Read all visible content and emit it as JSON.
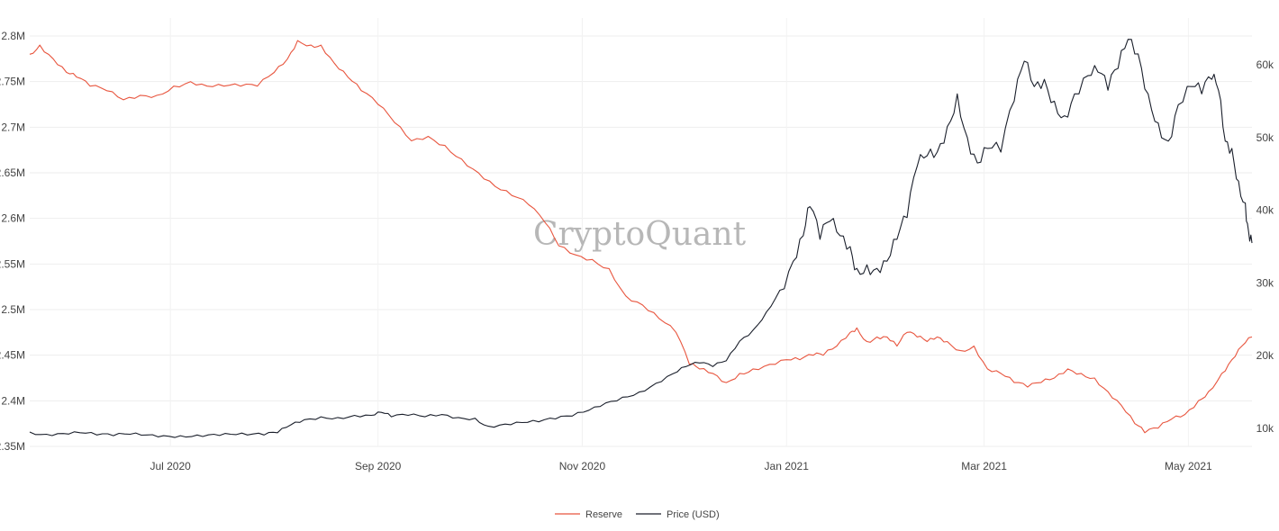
{
  "watermark": "CryptoQuant",
  "chart_data": {
    "type": "line",
    "title": "",
    "x_ticks": [
      "Jul 2020",
      "Sep 2020",
      "Nov 2020",
      "Jan 2021",
      "Mar 2021",
      "May 2021"
    ],
    "left_axis": {
      "ticks": [
        "2.8M",
        "2.75M",
        "2.7M",
        "2.65M",
        "2.6M",
        "2.55M",
        "2.5M",
        "2.45M",
        "2.4M",
        "2.35M"
      ],
      "range": [
        2350000,
        2800000
      ]
    },
    "right_axis": {
      "ticks": [
        "60k",
        "50k",
        "40k",
        "30k",
        "20k",
        "10k"
      ],
      "range": [
        10000,
        60000
      ]
    },
    "x_range": [
      "2020-05-20",
      "2021-05-20"
    ],
    "grid": true,
    "legend_position": "bottom-center",
    "series": [
      {
        "name": "Reserve",
        "axis": "left",
        "color": "#e8553e",
        "points": [
          [
            "2020-05-20",
            2780000
          ],
          [
            "2020-05-23",
            2790000
          ],
          [
            "2020-05-27",
            2775000
          ],
          [
            "2020-05-31",
            2760000
          ],
          [
            "2020-06-03",
            2755000
          ],
          [
            "2020-06-07",
            2745000
          ],
          [
            "2020-06-12",
            2740000
          ],
          [
            "2020-06-17",
            2730000
          ],
          [
            "2020-06-22",
            2735000
          ],
          [
            "2020-06-27",
            2735000
          ],
          [
            "2020-07-02",
            2745000
          ],
          [
            "2020-07-07",
            2750000
          ],
          [
            "2020-07-12",
            2745000
          ],
          [
            "2020-07-17",
            2745000
          ],
          [
            "2020-07-22",
            2745000
          ],
          [
            "2020-07-27",
            2745000
          ],
          [
            "2020-08-01",
            2760000
          ],
          [
            "2020-08-05",
            2775000
          ],
          [
            "2020-08-08",
            2795000
          ],
          [
            "2020-08-12",
            2790000
          ],
          [
            "2020-08-15",
            2790000
          ],
          [
            "2020-08-19",
            2770000
          ],
          [
            "2020-08-23",
            2755000
          ],
          [
            "2020-08-27",
            2740000
          ],
          [
            "2020-09-01",
            2725000
          ],
          [
            "2020-09-06",
            2705000
          ],
          [
            "2020-09-11",
            2685000
          ],
          [
            "2020-09-16",
            2690000
          ],
          [
            "2020-09-21",
            2680000
          ],
          [
            "2020-09-26",
            2665000
          ],
          [
            "2020-10-01",
            2650000
          ],
          [
            "2020-10-06",
            2635000
          ],
          [
            "2020-10-11",
            2625000
          ],
          [
            "2020-10-16",
            2615000
          ],
          [
            "2020-10-21",
            2595000
          ],
          [
            "2020-10-25",
            2570000
          ],
          [
            "2020-10-30",
            2560000
          ],
          [
            "2020-11-04",
            2555000
          ],
          [
            "2020-11-09",
            2545000
          ],
          [
            "2020-11-14",
            2515000
          ],
          [
            "2020-11-19",
            2505000
          ],
          [
            "2020-11-24",
            2490000
          ],
          [
            "2020-11-29",
            2475000
          ],
          [
            "2020-12-03",
            2440000
          ],
          [
            "2020-12-06",
            2435000
          ],
          [
            "2020-12-10",
            2430000
          ],
          [
            "2020-12-14",
            2420000
          ],
          [
            "2020-12-18",
            2430000
          ],
          [
            "2020-12-22",
            2435000
          ],
          [
            "2020-12-27",
            2440000
          ],
          [
            "2021-01-01",
            2445000
          ],
          [
            "2021-01-05",
            2445000
          ],
          [
            "2021-01-09",
            2450000
          ],
          [
            "2021-01-12",
            2450000
          ],
          [
            "2021-01-16",
            2460000
          ],
          [
            "2021-01-20",
            2475000
          ],
          [
            "2021-01-22",
            2480000
          ],
          [
            "2021-01-25",
            2465000
          ],
          [
            "2021-01-28",
            2470000
          ],
          [
            "2021-01-31",
            2470000
          ],
          [
            "2021-02-03",
            2460000
          ],
          [
            "2021-02-06",
            2475000
          ],
          [
            "2021-02-09",
            2470000
          ],
          [
            "2021-02-12",
            2465000
          ],
          [
            "2021-02-15",
            2470000
          ],
          [
            "2021-02-18",
            2465000
          ],
          [
            "2021-02-22",
            2455000
          ],
          [
            "2021-02-26",
            2460000
          ],
          [
            "2021-03-02",
            2435000
          ],
          [
            "2021-03-06",
            2430000
          ],
          [
            "2021-03-10",
            2420000
          ],
          [
            "2021-03-14",
            2415000
          ],
          [
            "2021-03-18",
            2420000
          ],
          [
            "2021-03-22",
            2425000
          ],
          [
            "2021-03-26",
            2435000
          ],
          [
            "2021-03-30",
            2430000
          ],
          [
            "2021-04-03",
            2425000
          ],
          [
            "2021-04-07",
            2410000
          ],
          [
            "2021-04-11",
            2395000
          ],
          [
            "2021-04-15",
            2375000
          ],
          [
            "2021-04-18",
            2365000
          ],
          [
            "2021-04-22",
            2370000
          ],
          [
            "2021-04-26",
            2380000
          ],
          [
            "2021-04-30",
            2385000
          ],
          [
            "2021-05-04",
            2400000
          ],
          [
            "2021-05-07",
            2410000
          ],
          [
            "2021-05-11",
            2430000
          ],
          [
            "2021-05-14",
            2445000
          ],
          [
            "2021-05-17",
            2460000
          ],
          [
            "2021-05-20",
            2470000
          ]
        ]
      },
      {
        "name": "Price (USD)",
        "axis": "right",
        "color": "#1a1f2b",
        "points": [
          [
            "2020-05-20",
            9500
          ],
          [
            "2020-05-25",
            9200
          ],
          [
            "2020-05-30",
            9300
          ],
          [
            "2020-06-04",
            9400
          ],
          [
            "2020-06-09",
            9100
          ],
          [
            "2020-06-14",
            9000
          ],
          [
            "2020-06-19",
            9200
          ],
          [
            "2020-06-24",
            9100
          ],
          [
            "2020-06-29",
            9000
          ],
          [
            "2020-07-04",
            9000
          ],
          [
            "2020-07-09",
            9100
          ],
          [
            "2020-07-14",
            9200
          ],
          [
            "2020-07-19",
            9200
          ],
          [
            "2020-07-24",
            9100
          ],
          [
            "2020-07-29",
            9100
          ],
          [
            "2020-08-02",
            9400
          ],
          [
            "2020-08-06",
            10500
          ],
          [
            "2020-08-10",
            11200
          ],
          [
            "2020-08-15",
            11600
          ],
          [
            "2020-08-20",
            11500
          ],
          [
            "2020-08-25",
            11800
          ],
          [
            "2020-08-30",
            11800
          ],
          [
            "2020-09-02",
            12200
          ],
          [
            "2020-09-05",
            11600
          ],
          [
            "2020-09-10",
            11800
          ],
          [
            "2020-09-15",
            11600
          ],
          [
            "2020-09-20",
            11900
          ],
          [
            "2020-09-25",
            11500
          ],
          [
            "2020-09-30",
            11400
          ],
          [
            "2020-10-04",
            10300
          ],
          [
            "2020-10-09",
            10600
          ],
          [
            "2020-10-14",
            10800
          ],
          [
            "2020-10-19",
            10900
          ],
          [
            "2020-10-24",
            11300
          ],
          [
            "2020-10-29",
            11700
          ],
          [
            "2020-11-03",
            12500
          ],
          [
            "2020-11-08",
            13500
          ],
          [
            "2020-11-13",
            14300
          ],
          [
            "2020-11-18",
            15000
          ],
          [
            "2020-11-23",
            16200
          ],
          [
            "2020-11-28",
            17500
          ],
          [
            "2020-12-02",
            18500
          ],
          [
            "2020-12-06",
            19000
          ],
          [
            "2020-12-10",
            18500
          ],
          [
            "2020-12-14",
            19300
          ],
          [
            "2020-12-18",
            22000
          ],
          [
            "2020-12-22",
            23500
          ],
          [
            "2020-12-26",
            26000
          ],
          [
            "2020-12-30",
            29000
          ],
          [
            "2021-01-03",
            33000
          ],
          [
            "2021-01-06",
            36500
          ],
          [
            "2021-01-08",
            40500
          ],
          [
            "2021-01-11",
            36000
          ],
          [
            "2021-01-14",
            38500
          ],
          [
            "2021-01-17",
            36500
          ],
          [
            "2021-01-20",
            35000
          ],
          [
            "2021-01-22",
            32000
          ],
          [
            "2021-01-25",
            32500
          ],
          [
            "2021-01-28",
            32000
          ],
          [
            "2021-01-31",
            33000
          ],
          [
            "2021-02-03",
            36000
          ],
          [
            "2021-02-06",
            39000
          ],
          [
            "2021-02-09",
            46000
          ],
          [
            "2021-02-12",
            47500
          ],
          [
            "2021-02-15",
            48000
          ],
          [
            "2021-02-18",
            51500
          ],
          [
            "2021-02-21",
            56000
          ],
          [
            "2021-02-24",
            50000
          ],
          [
            "2021-02-27",
            46500
          ],
          [
            "2021-03-02",
            48500
          ],
          [
            "2021-03-06",
            48000
          ],
          [
            "2021-03-10",
            55000
          ],
          [
            "2021-03-13",
            60500
          ],
          [
            "2021-03-16",
            57000
          ],
          [
            "2021-03-19",
            58000
          ],
          [
            "2021-03-22",
            55000
          ],
          [
            "2021-03-25",
            53000
          ],
          [
            "2021-03-28",
            56000
          ],
          [
            "2021-04-01",
            58500
          ],
          [
            "2021-04-04",
            59000
          ],
          [
            "2021-04-07",
            56500
          ],
          [
            "2021-04-10",
            59500
          ],
          [
            "2021-04-13",
            63500
          ],
          [
            "2021-04-16",
            61500
          ],
          [
            "2021-04-19",
            56000
          ],
          [
            "2021-04-22",
            52000
          ],
          [
            "2021-04-25",
            49500
          ],
          [
            "2021-04-28",
            54500
          ],
          [
            "2021-05-02",
            57000
          ],
          [
            "2021-05-05",
            56000
          ],
          [
            "2021-05-08",
            58000
          ],
          [
            "2021-05-10",
            56500
          ],
          [
            "2021-05-12",
            49500
          ],
          [
            "2021-05-14",
            48500
          ],
          [
            "2021-05-16",
            44000
          ],
          [
            "2021-05-18",
            41000
          ],
          [
            "2021-05-19",
            37000
          ],
          [
            "2021-05-20",
            35500
          ]
        ]
      }
    ],
    "legend": [
      "Reserve",
      "Price (USD)"
    ]
  }
}
